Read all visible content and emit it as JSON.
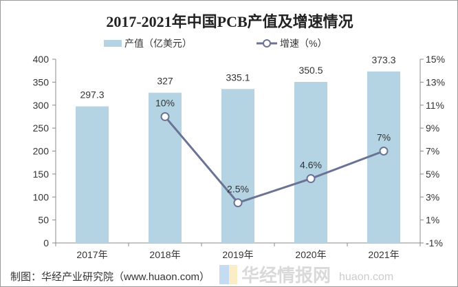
{
  "chart_data": {
    "type": "bar+line",
    "title": "2017-2021年中国PCB产值及增速情况",
    "categories": [
      "2017年",
      "2018年",
      "2019年",
      "2020年",
      "2021年"
    ],
    "series": [
      {
        "name": "产值（亿美元）",
        "type": "bar",
        "axis": "left",
        "values": [
          297.3,
          327,
          335.1,
          350.5,
          373.3
        ],
        "labels": [
          "297.3",
          "327",
          "335.1",
          "350.5",
          "373.3"
        ],
        "color": "#b4d3e3"
      },
      {
        "name": "增速（%）",
        "type": "line",
        "axis": "right",
        "values": [
          null,
          10,
          2.5,
          4.6,
          7
        ],
        "labels": [
          "",
          "10%",
          "2.5%",
          "4.6%",
          "7%"
        ],
        "color": "#6b7394"
      }
    ],
    "left_axis": {
      "ylim": [
        0,
        400
      ],
      "ticks": [
        "0",
        "50",
        "100",
        "150",
        "200",
        "250",
        "300",
        "350",
        "400"
      ]
    },
    "right_axis": {
      "ylim": [
        -1,
        15
      ],
      "ticks": [
        "-1%",
        "1%",
        "3%",
        "5%",
        "7%",
        "9%",
        "11%",
        "13%",
        "15%"
      ]
    },
    "legend": "top-center",
    "grid": false
  },
  "footer": "制图：华经产业研究院（www.huaon.com）",
  "watermark": {
    "name": "华经情报网",
    "url": "huaon.com"
  }
}
